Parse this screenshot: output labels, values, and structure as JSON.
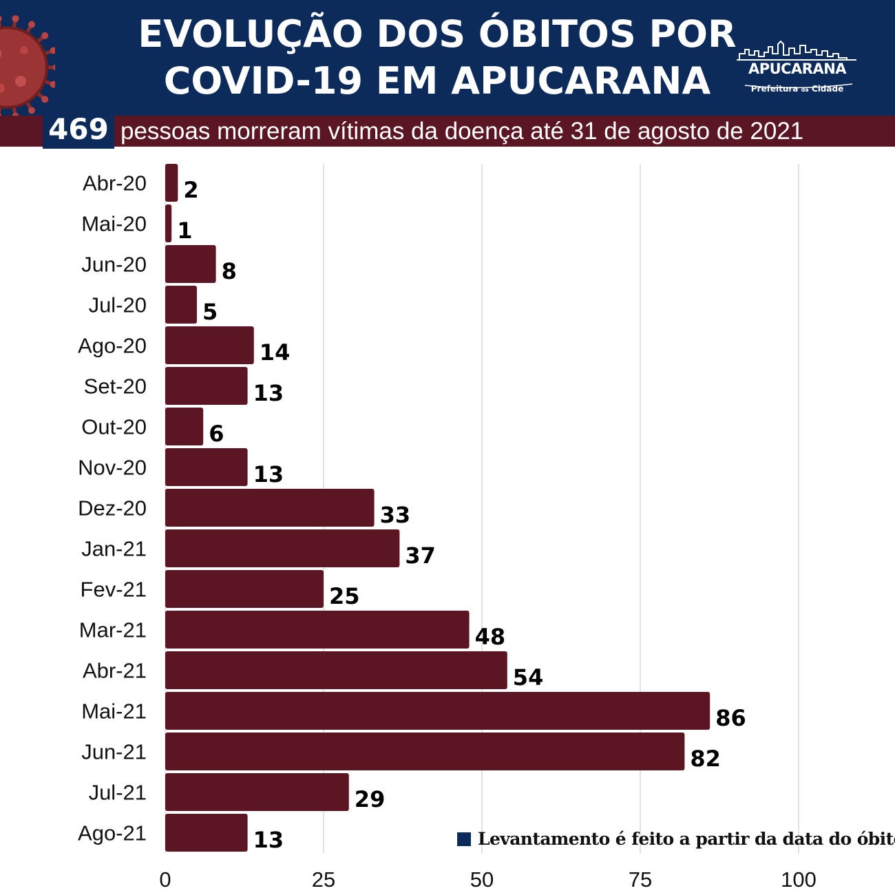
{
  "header": {
    "title_line1": "EVOLUÇÃO DOS ÓBITOS POR",
    "title_line2": "COVID-19 EM APUCARANA",
    "logo_name": "APUCARANA",
    "logo_sub_a": "Prefeitura",
    "logo_sub_b": "da",
    "logo_sub_c": "Cidade",
    "decor_icon": "virus-icon"
  },
  "subtitle": {
    "number": "469",
    "text": "pessoas morreram vítimas da doença até 31 de agosto de 2021"
  },
  "footnote": {
    "text": "Levantamento é feito a partir da data do óbito"
  },
  "colors": {
    "header_bg": "#0d2b5a",
    "accent_bar": "#5a1622",
    "bar": "#5c1522",
    "grid": "#d9d9d9"
  },
  "chart_data": {
    "type": "bar",
    "orientation": "horizontal",
    "categories": [
      "Abr-20",
      "Mai-20",
      "Jun-20",
      "Jul-20",
      "Ago-20",
      "Set-20",
      "Out-20",
      "Nov-20",
      "Dez-20",
      "Jan-21",
      "Fev-21",
      "Mar-21",
      "Abr-21",
      "Mai-21",
      "Jun-21",
      "Jul-21",
      "Ago-21"
    ],
    "values": [
      2,
      1,
      8,
      5,
      14,
      13,
      6,
      13,
      33,
      37,
      25,
      48,
      54,
      86,
      82,
      29,
      13
    ],
    "xlim": [
      0,
      100
    ],
    "xticks": [
      0,
      25,
      50,
      75,
      100
    ],
    "grid": true,
    "legend": "none"
  }
}
